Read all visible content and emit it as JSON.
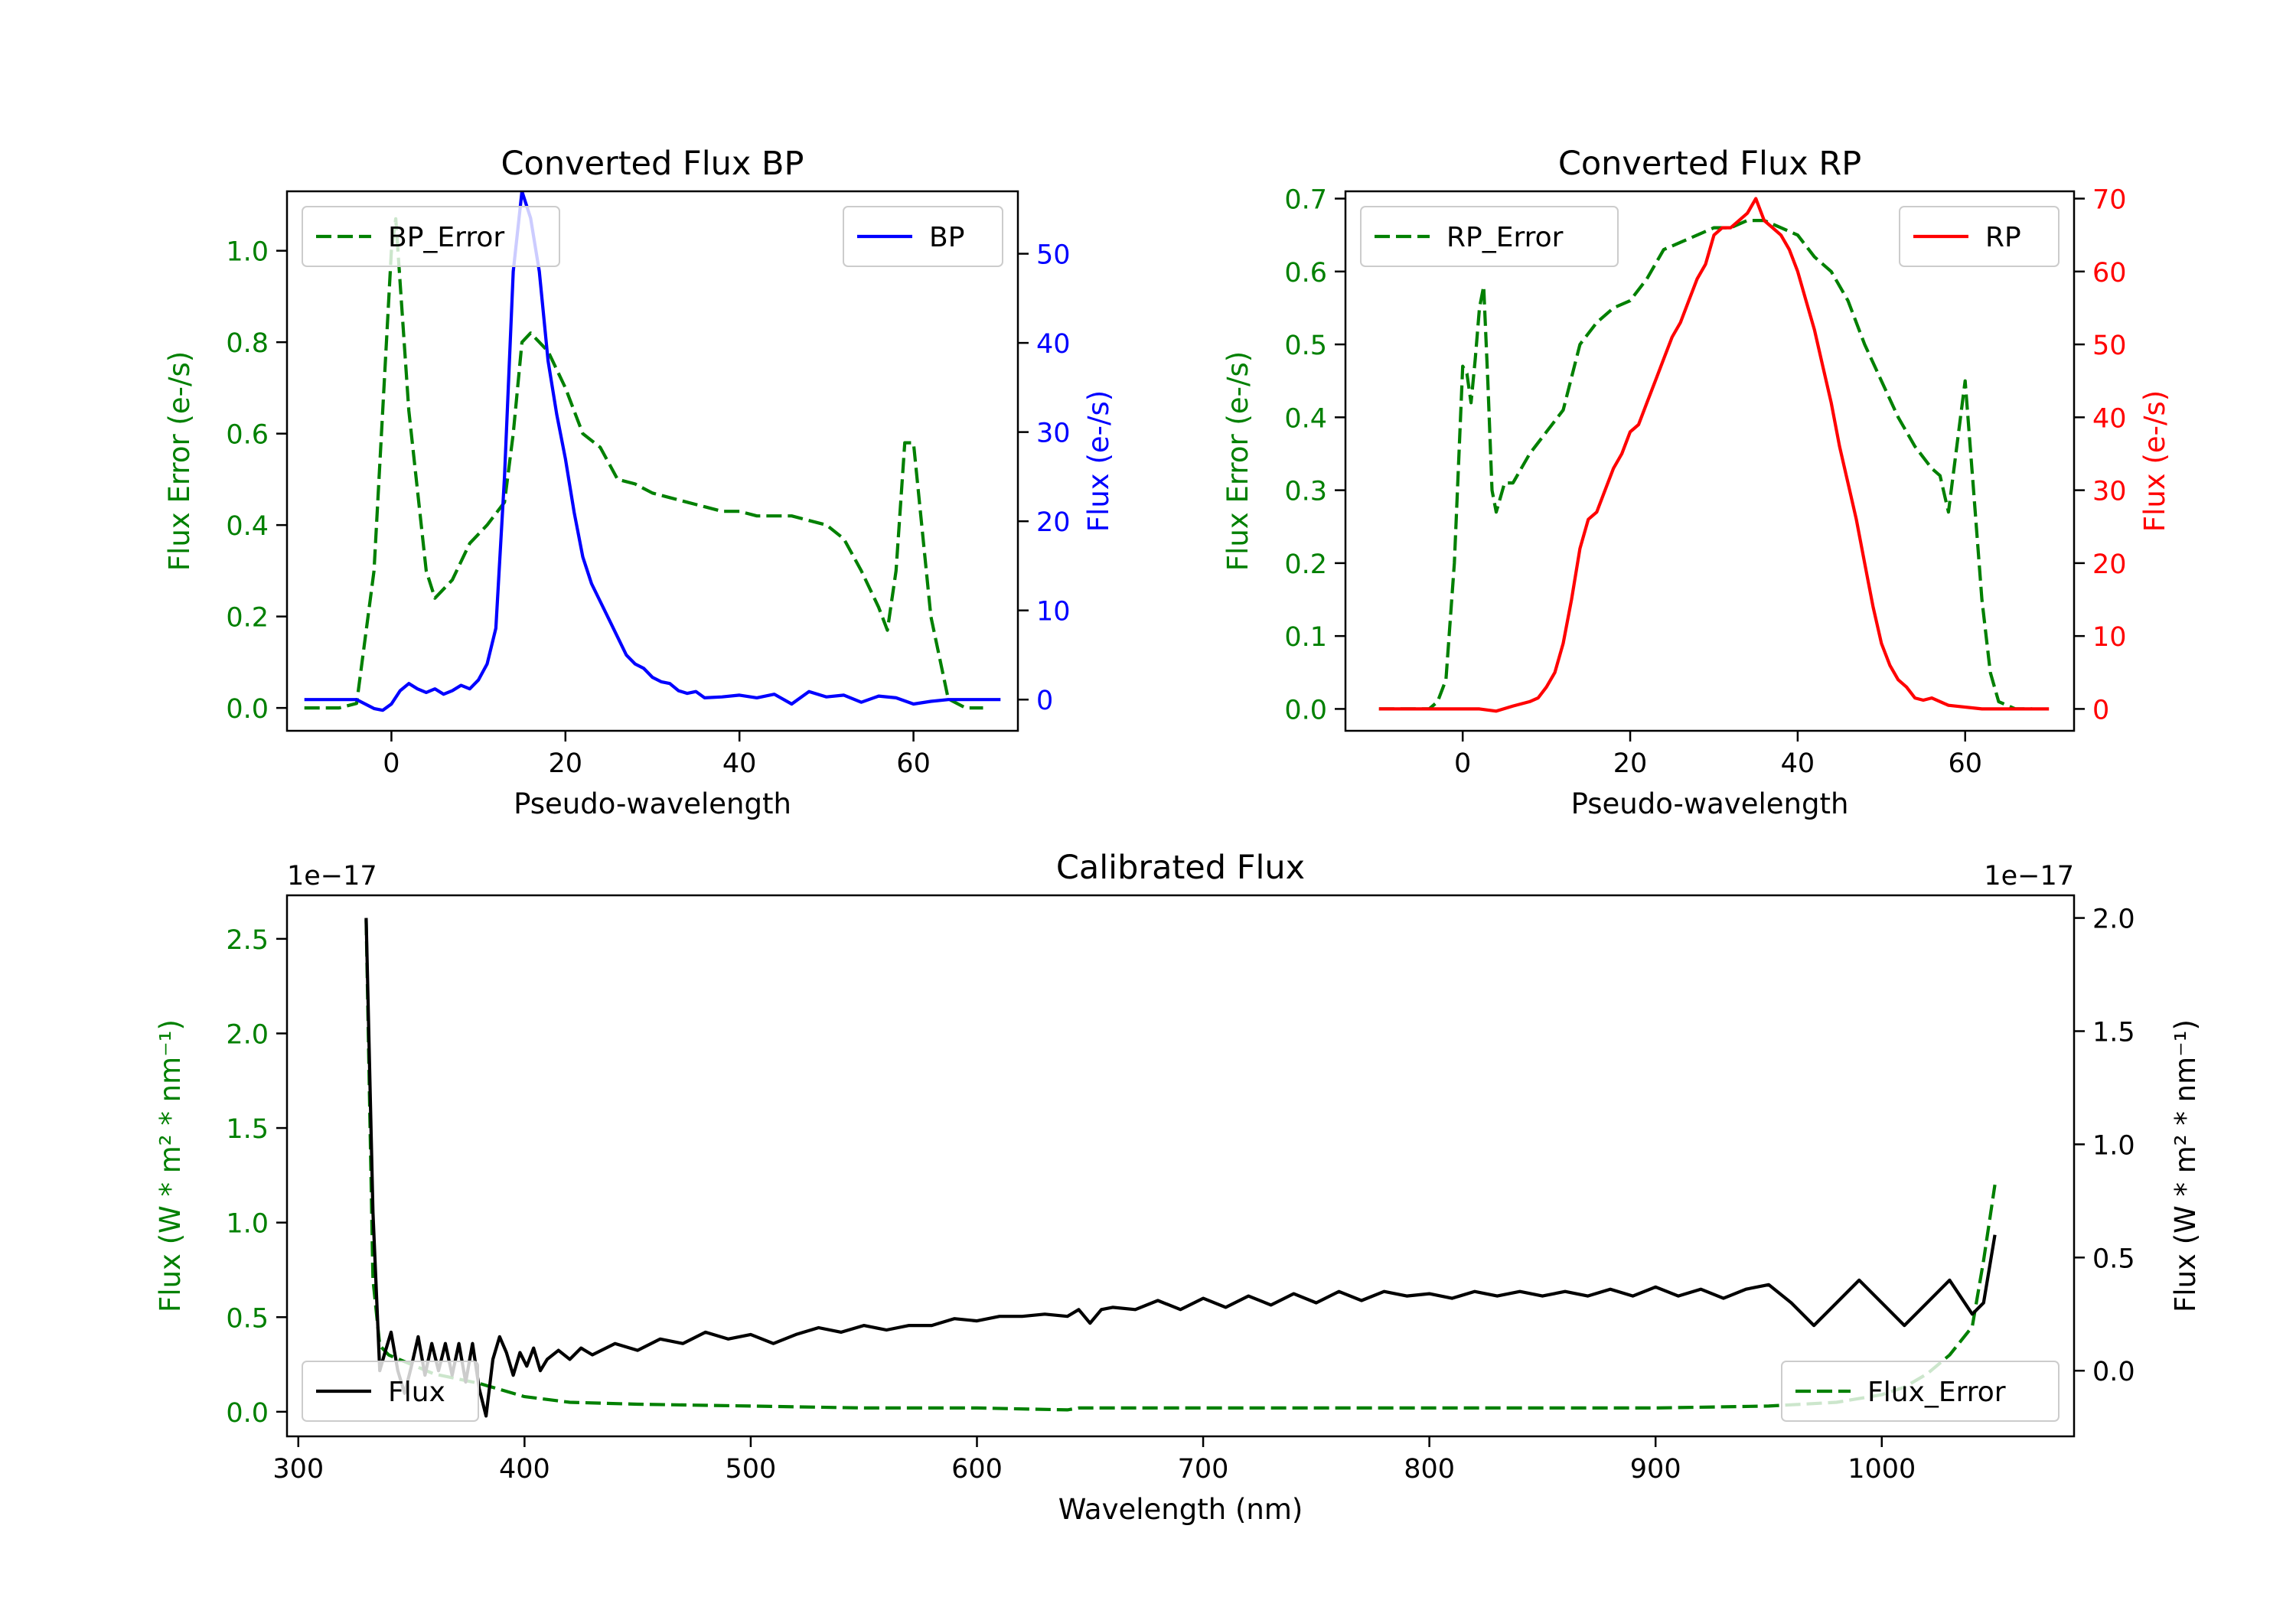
{
  "chart_data": [
    {
      "type": "line",
      "title": "Converted Flux BP",
      "xlabel": "Pseudo-wavelength",
      "xlim": [
        -12,
        72
      ],
      "xticks": [
        0,
        20,
        40,
        60
      ],
      "left_axis": {
        "label": "Flux Error (e-/s)",
        "color": "#008000",
        "ylim": [
          -0.05,
          1.13
        ],
        "ticks": [
          0.0,
          0.2,
          0.4,
          0.6,
          0.8,
          1.0
        ],
        "tick_labels": [
          "0.0",
          "0.2",
          "0.4",
          "0.6",
          "0.8",
          "1.0"
        ]
      },
      "right_axis": {
        "label": "Flux (e-/s)",
        "color": "#0000ff",
        "ylim": [
          -3.5,
          57
        ],
        "ticks": [
          0,
          10,
          20,
          30,
          40,
          50
        ],
        "tick_labels": [
          "0",
          "10",
          "20",
          "30",
          "40",
          "50"
        ]
      },
      "legend_left": {
        "label": "BP_Error",
        "placement": "upper-left"
      },
      "legend_right": {
        "label": "BP",
        "placement": "upper-right"
      },
      "series": [
        {
          "name": "BP_Error",
          "axis": "left",
          "color": "#008000",
          "style": "dashed",
          "x": [
            -10,
            -6,
            -4,
            -2,
            0,
            0.5,
            2,
            4,
            5,
            7,
            9,
            11,
            13,
            14,
            15,
            16,
            18,
            20,
            22,
            24,
            26,
            28,
            30,
            32,
            34,
            36,
            38,
            40,
            42,
            44,
            46,
            48,
            50,
            52,
            54,
            56,
            57,
            58,
            59,
            60,
            62,
            64,
            66,
            68
          ],
          "y": [
            0.0,
            0.0,
            0.01,
            0.3,
            1.0,
            1.07,
            0.65,
            0.3,
            0.24,
            0.28,
            0.36,
            0.4,
            0.45,
            0.6,
            0.8,
            0.82,
            0.78,
            0.7,
            0.6,
            0.57,
            0.5,
            0.49,
            0.47,
            0.46,
            0.45,
            0.44,
            0.43,
            0.43,
            0.42,
            0.42,
            0.42,
            0.41,
            0.4,
            0.37,
            0.3,
            0.22,
            0.17,
            0.3,
            0.58,
            0.58,
            0.2,
            0.02,
            0.0,
            0.0
          ]
        },
        {
          "name": "BP",
          "axis": "right",
          "color": "#0000ff",
          "style": "solid",
          "x": [
            -10,
            -6,
            -4,
            -2,
            -1,
            0,
            1,
            2,
            3,
            4,
            5,
            6,
            7,
            8,
            9,
            10,
            11,
            12,
            13,
            14,
            15,
            16,
            17,
            18,
            19,
            20,
            21,
            22,
            23,
            24,
            25,
            26,
            27,
            28,
            29,
            30,
            31,
            32,
            33,
            34,
            35,
            36,
            38,
            40,
            42,
            44,
            46,
            48,
            50,
            52,
            54,
            56,
            58,
            60,
            62,
            64,
            66,
            70
          ],
          "y": [
            0,
            0,
            0,
            -1,
            -1.2,
            -0.5,
            1,
            1.8,
            1.2,
            0.8,
            1.2,
            0.6,
            1,
            1.6,
            1.2,
            2.2,
            4,
            8,
            25,
            48,
            57,
            54,
            48,
            38,
            32,
            27,
            21,
            16,
            13,
            11,
            9,
            7,
            5,
            4,
            3.5,
            2.5,
            2,
            1.8,
            1,
            0.7,
            0.9,
            0.2,
            0.3,
            0.5,
            0.2,
            0.6,
            -0.5,
            0.9,
            0.3,
            0.5,
            -0.3,
            0.4,
            0.2,
            -0.5,
            -0.2,
            0,
            0,
            0
          ]
        }
      ]
    },
    {
      "type": "line",
      "title": "Converted Flux RP",
      "xlabel": "Pseudo-wavelength",
      "xlim": [
        -14,
        73
      ],
      "xticks": [
        0,
        20,
        40,
        60
      ],
      "left_axis": {
        "label": "Flux Error (e-/s)",
        "color": "#008000",
        "ylim": [
          -0.03,
          0.71
        ],
        "ticks": [
          0.0,
          0.1,
          0.2,
          0.3,
          0.4,
          0.5,
          0.6,
          0.7
        ],
        "tick_labels": [
          "0.0",
          "0.1",
          "0.2",
          "0.3",
          "0.4",
          "0.5",
          "0.6",
          "0.7"
        ]
      },
      "right_axis": {
        "label": "Flux (e-/s)",
        "color": "#ff0000",
        "ylim": [
          -3,
          71
        ],
        "ticks": [
          0,
          10,
          20,
          30,
          40,
          50,
          60,
          70
        ],
        "tick_labels": [
          "0",
          "10",
          "20",
          "30",
          "40",
          "50",
          "60",
          "70"
        ]
      },
      "legend_left": {
        "label": "RP_Error",
        "placement": "upper-left"
      },
      "legend_right": {
        "label": "RP",
        "placement": "upper-right"
      },
      "series": [
        {
          "name": "RP_Error",
          "axis": "left",
          "color": "#008000",
          "style": "dashed",
          "x": [
            -10,
            -6,
            -4,
            -3,
            -2,
            -1,
            0,
            0.5,
            1,
            1.5,
            2,
            2.5,
            3,
            3.5,
            4,
            5,
            6,
            7,
            8,
            10,
            12,
            14,
            16,
            18,
            20,
            22,
            24,
            26,
            28,
            30,
            32,
            34,
            36,
            38,
            40,
            42,
            44,
            46,
            48,
            50,
            52,
            54,
            56,
            57,
            58,
            59,
            60,
            61,
            62,
            63,
            64,
            66,
            68
          ],
          "y": [
            0.0,
            0.0,
            0.0,
            0.01,
            0.04,
            0.2,
            0.47,
            0.46,
            0.42,
            0.48,
            0.55,
            0.58,
            0.45,
            0.3,
            0.27,
            0.31,
            0.31,
            0.33,
            0.35,
            0.38,
            0.41,
            0.5,
            0.53,
            0.55,
            0.56,
            0.59,
            0.63,
            0.64,
            0.65,
            0.66,
            0.66,
            0.67,
            0.67,
            0.66,
            0.65,
            0.62,
            0.6,
            0.56,
            0.5,
            0.45,
            0.4,
            0.36,
            0.33,
            0.32,
            0.27,
            0.36,
            0.45,
            0.3,
            0.15,
            0.05,
            0.01,
            0.0,
            0.0
          ]
        },
        {
          "name": "RP",
          "axis": "right",
          "color": "#ff0000",
          "style": "solid",
          "x": [
            -10,
            -6,
            -2,
            2,
            4,
            6,
            8,
            9,
            10,
            11,
            12,
            13,
            14,
            15,
            16,
            17,
            18,
            19,
            20,
            21,
            22,
            23,
            24,
            25,
            26,
            27,
            28,
            29,
            30,
            31,
            32,
            33,
            34,
            35,
            36,
            37,
            38,
            39,
            40,
            41,
            42,
            43,
            44,
            45,
            46,
            47,
            48,
            49,
            50,
            51,
            52,
            53,
            54,
            55,
            56,
            58,
            62,
            66,
            70
          ],
          "y": [
            0,
            0,
            0,
            0,
            -0.3,
            0.4,
            1,
            1.5,
            3,
            5,
            9,
            15,
            22,
            26,
            27,
            30,
            33,
            35,
            38,
            39,
            42,
            45,
            48,
            51,
            53,
            56,
            59,
            61,
            65,
            66,
            66,
            67,
            68,
            70,
            67,
            66,
            65,
            63,
            60,
            56,
            52,
            47,
            42,
            36,
            31,
            26,
            20,
            14,
            9,
            6,
            4,
            3,
            1.5,
            1.2,
            1.5,
            0.5,
            0,
            0,
            0
          ]
        }
      ]
    },
    {
      "type": "line",
      "title": "Calibrated Flux",
      "xlabel": "Wavelength (nm)",
      "xlim": [
        295,
        1085
      ],
      "xticks": [
        300,
        400,
        500,
        600,
        700,
        800,
        900,
        1000
      ],
      "left_axis": {
        "label": "Flux (W * m² * nm⁻¹)",
        "color": "#008000",
        "ylim": [
          -0.13,
          2.73
        ],
        "ticks": [
          0.0,
          0.5,
          1.0,
          1.5,
          2.0,
          2.5
        ],
        "tick_labels": [
          "0.0",
          "0.5",
          "1.0",
          "1.5",
          "2.0",
          "2.5"
        ],
        "offset_text": "1e−17"
      },
      "right_axis": {
        "label": "Flux (W * m² * nm⁻¹)",
        "color": "#000000",
        "ylim": [
          -0.29,
          2.1
        ],
        "ticks": [
          0.0,
          0.5,
          1.0,
          1.5,
          2.0
        ],
        "tick_labels": [
          "0.0",
          "0.5",
          "1.0",
          "1.5",
          "2.0"
        ],
        "offset_text": "1e−17"
      },
      "legend_left": {
        "label": "Flux",
        "placement": "lower-left"
      },
      "legend_right": {
        "label": "Flux_Error",
        "placement": "lower-right"
      },
      "series": [
        {
          "name": "Flux_Error",
          "axis": "left",
          "color": "#008000",
          "style": "dashed",
          "x": [
            330,
            333,
            336,
            340,
            350,
            360,
            380,
            400,
            420,
            450,
            500,
            550,
            600,
            640,
            645,
            700,
            800,
            900,
            950,
            980,
            1000,
            1010,
            1020,
            1030,
            1040,
            1045,
            1050
          ],
          "y": [
            2.6,
            0.7,
            0.35,
            0.3,
            0.25,
            0.2,
            0.15,
            0.08,
            0.05,
            0.04,
            0.03,
            0.02,
            0.02,
            0.01,
            0.02,
            0.02,
            0.02,
            0.02,
            0.03,
            0.05,
            0.09,
            0.13,
            0.2,
            0.3,
            0.45,
            0.8,
            1.2
          ]
        },
        {
          "name": "Flux",
          "axis": "right",
          "color": "#000000",
          "style": "solid",
          "x": [
            330,
            333,
            336,
            338,
            341,
            344,
            347,
            350,
            353,
            356,
            359,
            362,
            365,
            368,
            371,
            374,
            377,
            380,
            383,
            386,
            389,
            392,
            395,
            398,
            401,
            404,
            407,
            410,
            415,
            420,
            425,
            430,
            440,
            450,
            460,
            470,
            480,
            490,
            500,
            510,
            520,
            530,
            540,
            550,
            560,
            570,
            580,
            590,
            600,
            610,
            620,
            630,
            640,
            645,
            650,
            655,
            660,
            670,
            680,
            690,
            700,
            710,
            720,
            730,
            740,
            750,
            760,
            770,
            780,
            790,
            800,
            810,
            820,
            830,
            840,
            850,
            860,
            870,
            880,
            890,
            900,
            910,
            920,
            930,
            940,
            950,
            960,
            970,
            980,
            990,
            1000,
            1010,
            1020,
            1030,
            1040,
            1045,
            1050
          ],
          "y": [
            2.0,
            0.7,
            0.0,
            0.07,
            0.17,
            0.0,
            -0.1,
            0.02,
            0.15,
            -0.02,
            0.12,
            0.0,
            0.12,
            -0.02,
            0.12,
            -0.05,
            0.12,
            -0.08,
            -0.2,
            0.05,
            0.15,
            0.08,
            -0.02,
            0.08,
            0.02,
            0.1,
            0.0,
            0.05,
            0.09,
            0.05,
            0.1,
            0.07,
            0.12,
            0.09,
            0.14,
            0.12,
            0.17,
            0.14,
            0.16,
            0.12,
            0.16,
            0.19,
            0.17,
            0.2,
            0.18,
            0.2,
            0.2,
            0.23,
            0.22,
            0.24,
            0.24,
            0.25,
            0.24,
            0.27,
            0.21,
            0.27,
            0.28,
            0.27,
            0.31,
            0.27,
            0.32,
            0.28,
            0.33,
            0.29,
            0.34,
            0.3,
            0.35,
            0.31,
            0.35,
            0.33,
            0.34,
            0.32,
            0.35,
            0.33,
            0.35,
            0.33,
            0.35,
            0.33,
            0.36,
            0.33,
            0.37,
            0.33,
            0.36,
            0.32,
            0.36,
            0.38,
            0.3,
            0.2,
            0.3,
            0.4,
            0.3,
            0.2,
            0.3,
            0.4,
            0.25,
            0.3,
            0.6
          ]
        }
      ]
    }
  ]
}
